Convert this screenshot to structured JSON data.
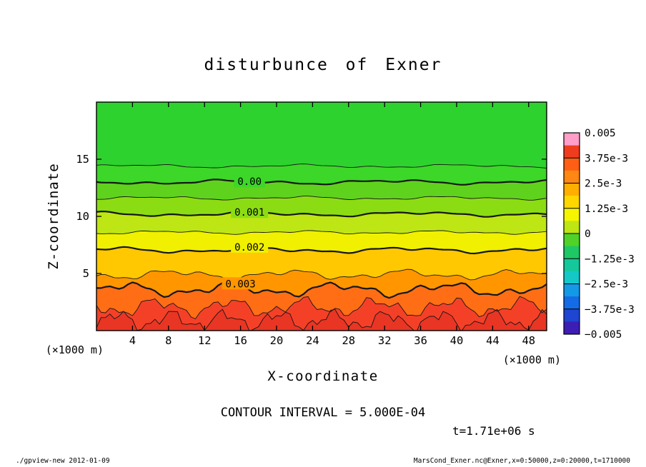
{
  "title": "disturbunce of Exner",
  "annotations": {
    "contour_interval": "CONTOUR INTERVAL = 5.000E-04",
    "time": "t=1.71e+06 s",
    "x_units_left": "(×1000 m)",
    "x_units_right": "(×1000 m)"
  },
  "footer": {
    "left": "./gpview-new  2012-01-09",
    "right": "MarsCond_Exner.nc@Exner,x=0:50000,z=0:20000,t=1710000"
  },
  "chart_data": {
    "type": "filled_contour",
    "title": "disturbunce of Exner",
    "xlabel": "X-coordinate",
    "ylabel": "Z-coordinate",
    "x_units": "(×1000 m)",
    "xlim": [
      0,
      50
    ],
    "ylim": [
      0,
      20
    ],
    "xticks": [
      4,
      8,
      12,
      16,
      20,
      24,
      28,
      32,
      36,
      40,
      44,
      48
    ],
    "yticks": [
      5,
      10,
      15
    ],
    "grid": false,
    "contour_interval": 0.0005,
    "levels": [
      {
        "value": -0.0005,
        "z": 14.4,
        "amp": 0.1,
        "freq": 1.0,
        "bold": false
      },
      {
        "value": 0.0,
        "z": 13.0,
        "amp": 0.13,
        "freq": 1.0,
        "bold": true,
        "label": "0.00",
        "label_x": 17
      },
      {
        "value": 0.0005,
        "z": 11.6,
        "amp": 0.1,
        "freq": 1.1,
        "bold": false
      },
      {
        "value": 0.001,
        "z": 10.2,
        "amp": 0.13,
        "freq": 1.0,
        "bold": true,
        "label": "0.001",
        "label_x": 17
      },
      {
        "value": 0.0015,
        "z": 8.6,
        "amp": 0.1,
        "freq": 1.2,
        "bold": false
      },
      {
        "value": 0.002,
        "z": 7.05,
        "amp": 0.16,
        "freq": 1.1,
        "bold": true,
        "label": "0.002",
        "label_x": 17
      },
      {
        "value": 0.0025,
        "z": 4.9,
        "amp": 0.28,
        "freq": 1.4,
        "bold": false
      },
      {
        "value": 0.003,
        "z": 3.6,
        "amp": 0.4,
        "freq": 1.5,
        "bold": true,
        "label": "0.003",
        "label_x": 16
      },
      {
        "value": 0.0035,
        "z": 2.05,
        "amp": 0.55,
        "freq": 2.2,
        "bold": false
      },
      {
        "value": 0.004,
        "z": 0.9,
        "amp": 0.6,
        "freq": 3.0,
        "bold": false
      }
    ],
    "band_colors": [
      "#2ed22e",
      "#3cd728",
      "#5fd21e",
      "#8cdc14",
      "#bee614",
      "#f0f000",
      "#ffc800",
      "#ff9600",
      "#ff6e14",
      "#f54028",
      "#e93523"
    ],
    "colorbar": {
      "labels": [
        "0.005",
        "3.75e-3",
        "2.5e-3",
        "1.25e-3",
        "0",
        "−1.25e-3",
        "−2.5e-3",
        "−3.75e-3",
        "−0.005"
      ],
      "colors": [
        "#ff9ec8",
        "#f03c1e",
        "#ff5f14",
        "#ff8714",
        "#ffaf00",
        "#ffd700",
        "#f5f500",
        "#bee614",
        "#50d228",
        "#1ec864",
        "#14c89b",
        "#14c8c8",
        "#1499e6",
        "#146be6",
        "#1e46d2",
        "#3c1eb4"
      ]
    }
  }
}
